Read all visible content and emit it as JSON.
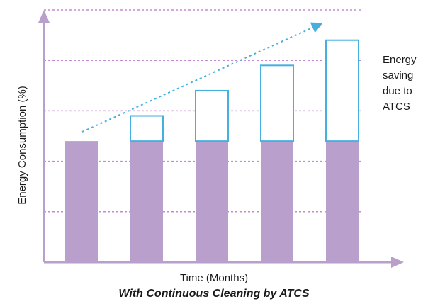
{
  "chart_data": {
    "type": "bar",
    "categories": [
      "",
      "",
      "",
      "",
      ""
    ],
    "series": [
      {
        "values": [
          48,
          48,
          48,
          48,
          48
        ]
      },
      {
        "values": [
          0,
          10,
          20,
          30,
          40
        ]
      }
    ],
    "xlabel": "Time (Months)",
    "ylabel": "Energy Consumption (%)",
    "ylim": [
      0,
      100
    ],
    "grid": true,
    "annotation_lines": [
      "Energy",
      "saving",
      "due to",
      "ATCS"
    ],
    "trend_arrow": true,
    "colors": {
      "base": "#b99fcb",
      "saving_outline": "#45b0e0",
      "grid": "#c58ad3",
      "axis": "#b99fcb",
      "arrow": "#45b0e0"
    }
  },
  "caption": "With Continuous Cleaning by ATCS"
}
